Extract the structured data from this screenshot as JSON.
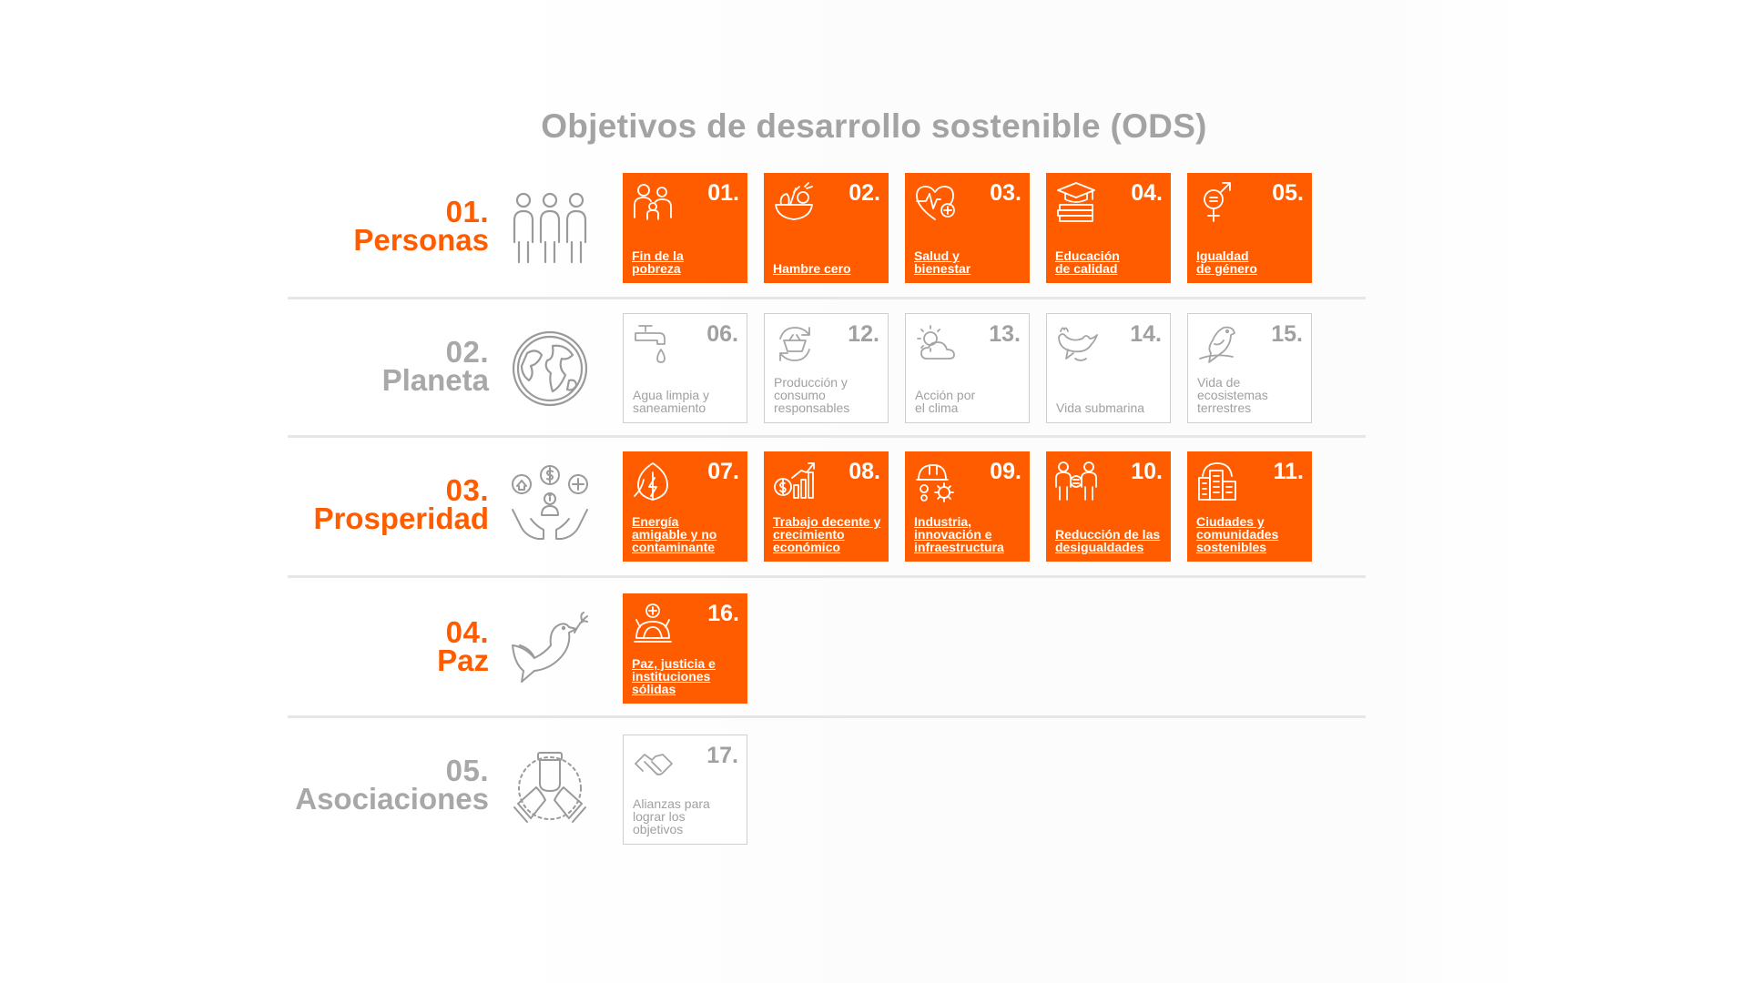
{
  "title": "Objetivos de desarrollo sostenible (ODS)",
  "colors": {
    "accent": "#ff5c00",
    "muted": "#a8a8a8",
    "separator": "#e6e6e6"
  },
  "pillars": [
    {
      "num": "01.",
      "name": "Personas",
      "icon": "people-icon",
      "active": true
    },
    {
      "num": "02.",
      "name": "Planeta",
      "icon": "globe-icon",
      "active": false
    },
    {
      "num": "03.",
      "name": "Prosperidad",
      "icon": "hands-coins-icon",
      "active": true
    },
    {
      "num": "04.",
      "name": "Paz",
      "icon": "dove-icon",
      "active": true
    },
    {
      "num": "05.",
      "name": "Asociaciones",
      "icon": "handshake-icon",
      "active": false
    }
  ],
  "goals": [
    {
      "num": "01.",
      "label": "Fin de la pobreza",
      "icon": "family-icon",
      "active": true
    },
    {
      "num": "02.",
      "label": "Hambre cero",
      "icon": "food-bowl-icon",
      "active": true
    },
    {
      "num": "03.",
      "label": "Salud y bienestar",
      "icon": "heart-pulse-icon",
      "active": true
    },
    {
      "num": "04.",
      "label": "Educación de calidad",
      "icon": "graduation-books-icon",
      "active": true
    },
    {
      "num": "05.",
      "label": "Igualdad de género",
      "icon": "gender-icon",
      "active": true
    },
    {
      "num": "06.",
      "label": "Agua limpia y saneamiento",
      "icon": "water-tap-icon",
      "active": false
    },
    {
      "num": "12.",
      "label": "Producción y consumo responsables",
      "icon": "recycle-basket-icon",
      "active": false
    },
    {
      "num": "13.",
      "label": "Acción por el clima",
      "icon": "sun-cloud-icon",
      "active": false
    },
    {
      "num": "14.",
      "label": "Vida submarina",
      "icon": "whale-icon",
      "active": false
    },
    {
      "num": "15.",
      "label": "Vida de ecosistemas terrestres",
      "icon": "parrot-icon",
      "active": false
    },
    {
      "num": "07.",
      "label": "Energía amigable y no contaminante",
      "icon": "leaf-energy-icon",
      "active": true
    },
    {
      "num": "08.",
      "label": "Trabajo decente y crecimiento económico",
      "icon": "growth-chart-icon",
      "active": true
    },
    {
      "num": "09.",
      "label": "Industria, innovación e infraestructura",
      "icon": "helmet-gear-icon",
      "active": true
    },
    {
      "num": "10.",
      "label": "Reducción de las desigualdades",
      "icon": "equality-people-icon",
      "active": true
    },
    {
      "num": "11.",
      "label": "Ciudades y comunidades sostenibles",
      "icon": "city-icon",
      "active": true
    },
    {
      "num": "16.",
      "label": "Paz, justicia e instituciones sólidas",
      "icon": "justice-globe-icon",
      "active": true
    },
    {
      "num": "17.",
      "label": "Alianzas para lograr los objetivos",
      "icon": "handshake-icon",
      "active": false
    }
  ]
}
